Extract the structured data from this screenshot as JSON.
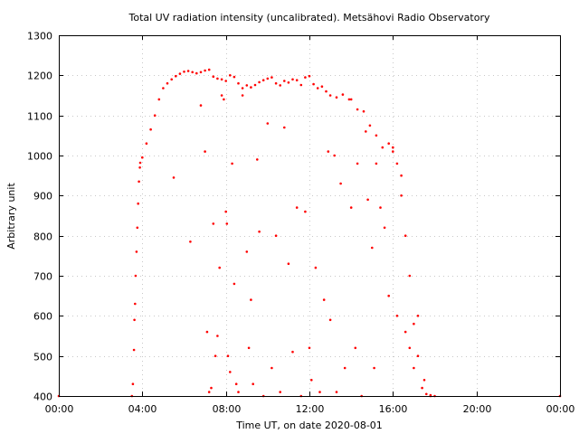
{
  "chart_data": {
    "type": "scatter",
    "title": "Total UV radiation intensity (uncalibrated). Metsähovi Radio Observatory",
    "xlabel": "Time UT, on date 2020-08-01",
    "ylabel": "Arbitrary unit",
    "xlim": [
      0,
      24
    ],
    "ylim": [
      400,
      1300
    ],
    "x_unit": "hours UT",
    "x_ticks": [
      0,
      4,
      8,
      12,
      16,
      20,
      24
    ],
    "x_tick_labels": [
      "00:00",
      "04:00",
      "08:00",
      "12:00",
      "16:00",
      "20:00",
      "00:00"
    ],
    "y_ticks": [
      400,
      500,
      600,
      700,
      800,
      900,
      1000,
      1100,
      1200,
      1300
    ],
    "y_tick_labels": [
      "400",
      "500",
      "600",
      "700",
      "800",
      "900",
      "1000",
      "1100",
      "1200",
      "1300"
    ],
    "grid": true,
    "marker_color": "#ff0000",
    "series": [
      {
        "points": [
          [
            0.0,
            400
          ],
          [
            3.5,
            400
          ],
          [
            3.55,
            430
          ],
          [
            3.6,
            515
          ],
          [
            3.62,
            590
          ],
          [
            3.65,
            630
          ],
          [
            3.68,
            700
          ],
          [
            3.72,
            760
          ],
          [
            3.76,
            820
          ],
          [
            3.8,
            880
          ],
          [
            3.84,
            935
          ],
          [
            3.88,
            970
          ],
          [
            3.9,
            982
          ],
          [
            4.0,
            995
          ],
          [
            4.2,
            1030
          ],
          [
            4.4,
            1065
          ],
          [
            4.6,
            1100
          ],
          [
            4.8,
            1140
          ],
          [
            5.0,
            1168
          ],
          [
            5.2,
            1180
          ],
          [
            5.4,
            1190
          ],
          [
            5.6,
            1198
          ],
          [
            5.8,
            1204
          ],
          [
            6.0,
            1209
          ],
          [
            6.2,
            1211
          ],
          [
            6.4,
            1208
          ],
          [
            6.6,
            1205
          ],
          [
            6.8,
            1208
          ],
          [
            7.0,
            1212
          ],
          [
            7.2,
            1214
          ],
          [
            7.4,
            1197
          ],
          [
            7.6,
            1192
          ],
          [
            7.8,
            1190
          ],
          [
            8.0,
            1186
          ],
          [
            8.2,
            1200
          ],
          [
            8.4,
            1196
          ],
          [
            8.6,
            1180
          ],
          [
            8.8,
            1168
          ],
          [
            9.0,
            1175
          ],
          [
            9.2,
            1170
          ],
          [
            9.4,
            1176
          ],
          [
            9.6,
            1183
          ],
          [
            9.8,
            1188
          ],
          [
            10.0,
            1192
          ],
          [
            10.2,
            1195
          ],
          [
            10.4,
            1180
          ],
          [
            10.6,
            1175
          ],
          [
            10.8,
            1186
          ],
          [
            11.0,
            1182
          ],
          [
            11.2,
            1190
          ],
          [
            11.4,
            1188
          ],
          [
            11.6,
            1176
          ],
          [
            11.8,
            1195
          ],
          [
            12.0,
            1198
          ],
          [
            12.2,
            1178
          ],
          [
            12.4,
            1168
          ],
          [
            12.6,
            1172
          ],
          [
            12.8,
            1160
          ],
          [
            13.0,
            1150
          ],
          [
            13.3,
            1145
          ],
          [
            13.6,
            1152
          ],
          [
            14.0,
            1140
          ],
          [
            14.3,
            1115
          ],
          [
            14.6,
            1110
          ],
          [
            14.9,
            1075
          ],
          [
            15.2,
            1050
          ],
          [
            15.5,
            1020
          ],
          [
            15.8,
            1030
          ],
          [
            16.0,
            1010
          ],
          [
            16.2,
            980
          ],
          [
            16.4,
            900
          ],
          [
            16.6,
            800
          ],
          [
            16.8,
            700
          ],
          [
            17.0,
            580
          ],
          [
            17.2,
            500
          ],
          [
            17.4,
            420
          ],
          [
            17.6,
            405
          ],
          [
            17.8,
            402
          ],
          [
            18.0,
            400
          ],
          [
            24.0,
            400
          ],
          [
            5.5,
            945
          ],
          [
            6.3,
            785
          ],
          [
            6.8,
            1125
          ],
          [
            7.0,
            1010
          ],
          [
            7.1,
            560
          ],
          [
            7.2,
            410
          ],
          [
            7.3,
            420
          ],
          [
            7.4,
            830
          ],
          [
            7.5,
            500
          ],
          [
            7.6,
            550
          ],
          [
            7.7,
            720
          ],
          [
            7.8,
            1150
          ],
          [
            7.9,
            1140
          ],
          [
            8.0,
            860
          ],
          [
            8.05,
            830
          ],
          [
            8.1,
            500
          ],
          [
            8.2,
            460
          ],
          [
            8.3,
            980
          ],
          [
            8.4,
            680
          ],
          [
            8.5,
            430
          ],
          [
            8.6,
            410
          ],
          [
            8.8,
            1150
          ],
          [
            9.0,
            760
          ],
          [
            9.1,
            520
          ],
          [
            9.2,
            640
          ],
          [
            9.3,
            430
          ],
          [
            9.5,
            990
          ],
          [
            9.6,
            810
          ],
          [
            9.8,
            400
          ],
          [
            10.0,
            1080
          ],
          [
            10.2,
            470
          ],
          [
            10.4,
            800
          ],
          [
            10.6,
            410
          ],
          [
            10.8,
            1070
          ],
          [
            11.0,
            730
          ],
          [
            11.2,
            510
          ],
          [
            11.4,
            870
          ],
          [
            11.6,
            400
          ],
          [
            11.8,
            860
          ],
          [
            12.0,
            520
          ],
          [
            12.1,
            440
          ],
          [
            12.3,
            720
          ],
          [
            12.5,
            410
          ],
          [
            12.7,
            640
          ],
          [
            12.9,
            1010
          ],
          [
            13.0,
            590
          ],
          [
            13.2,
            1000
          ],
          [
            13.3,
            410
          ],
          [
            13.5,
            930
          ],
          [
            13.7,
            470
          ],
          [
            13.9,
            1140
          ],
          [
            14.0,
            870
          ],
          [
            14.2,
            520
          ],
          [
            14.3,
            980
          ],
          [
            14.5,
            400
          ],
          [
            14.7,
            1060
          ],
          [
            14.8,
            890
          ],
          [
            15.0,
            770
          ],
          [
            15.1,
            470
          ],
          [
            15.2,
            980
          ],
          [
            15.4,
            870
          ],
          [
            15.6,
            820
          ],
          [
            15.8,
            650
          ],
          [
            16.0,
            1020
          ],
          [
            16.2,
            600
          ],
          [
            16.4,
            950
          ],
          [
            16.6,
            560
          ],
          [
            16.8,
            520
          ],
          [
            17.0,
            470
          ],
          [
            17.2,
            600
          ],
          [
            17.5,
            440
          ],
          [
            17.8,
            400
          ]
        ]
      }
    ]
  }
}
